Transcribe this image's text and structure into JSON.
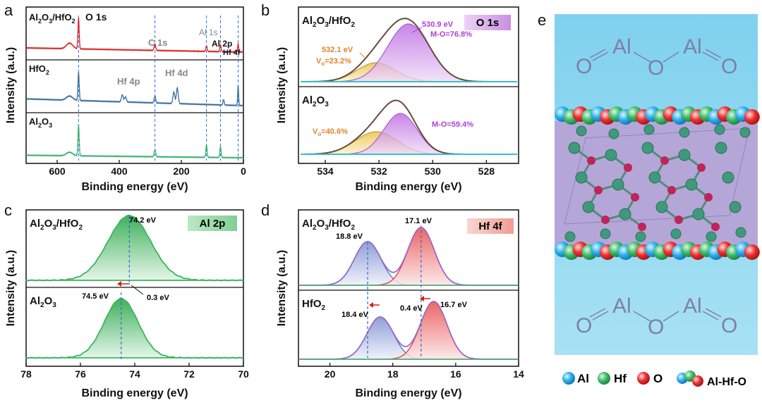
{
  "panel_letters": [
    "a",
    "b",
    "c",
    "d",
    "e"
  ],
  "chart_data": [
    {
      "id": "a",
      "type": "line",
      "xlabel": "Binding energy (eV)",
      "ylabel": "Intensity (a.u.)",
      "xlim": [
        700,
        0
      ],
      "xticks": [
        "600",
        "400",
        "200",
        "0"
      ],
      "xtick_values": [
        600,
        400,
        200,
        0
      ],
      "series": [
        {
          "name": "Al2O3/HfO2",
          "label_main": "Al",
          "color": "#d62728"
        },
        {
          "name": "HfO2",
          "label_main": "HfO",
          "color": "#3c6e9a"
        },
        {
          "name": "Al2O3",
          "label_main": "Al",
          "color": "#3cb371"
        }
      ],
      "peak_labels": [
        {
          "text": "O 1s",
          "x": 531
        },
        {
          "text": "C 1s",
          "x": 285
        },
        {
          "text": "Al 1s",
          "x": 119
        },
        {
          "text": "Al 2p",
          "x": 74
        },
        {
          "text": "Hf 4f",
          "x": 17
        },
        {
          "text": "Hf 4p",
          "x": 390
        },
        {
          "text": "Hf 4d",
          "x": 214
        }
      ],
      "ref_lines": [
        531,
        285,
        119,
        74,
        17
      ]
    },
    {
      "id": "b",
      "type": "line",
      "xlabel": "Binding energy (eV)",
      "ylabel": "Intensity (a.u.)",
      "xlim": [
        535,
        526.8
      ],
      "xticks": [
        "534",
        "532",
        "530",
        "528"
      ],
      "xtick_values": [
        534,
        532,
        530,
        528
      ],
      "badge": "O 1s",
      "top": {
        "name": "Al2O3/HfO2",
        "peaks": [
          {
            "center": 530.9,
            "label": "530.9 eV",
            "label2": "M-O=76.8%"
          },
          {
            "center": 532.1,
            "label": "532.1 eV",
            "label2": "V=23.2%"
          }
        ]
      },
      "bottom": {
        "name": "Al2O3",
        "peaks": [
          {
            "center": 531.2,
            "label": "M-O=59.4%"
          },
          {
            "center": 532.1,
            "label": "V=40.6%"
          }
        ]
      }
    },
    {
      "id": "c",
      "type": "line",
      "xlabel": "Binding energy (eV)",
      "ylabel": "Intensity (a.u.)",
      "xlim": [
        78,
        70
      ],
      "xticks": [
        "78",
        "76",
        "74",
        "72",
        "70"
      ],
      "xtick_values": [
        78,
        76,
        74,
        72,
        70
      ],
      "badge": "Al 2p",
      "top": {
        "name": "Al2O3/HfO2",
        "peak": 74.2,
        "label": "74.2 eV"
      },
      "bottom": {
        "name": "Al2O3",
        "peak": 74.5,
        "label": "74.5 eV"
      },
      "shift": "0.3 eV"
    },
    {
      "id": "d",
      "type": "line",
      "xlabel": "Binding energy (eV)",
      "ylabel": "Intensity (a.u.)",
      "xlim": [
        21,
        14
      ],
      "xticks": [
        "20",
        "18",
        "16",
        "14"
      ],
      "xtick_values": [
        20,
        18,
        16,
        14
      ],
      "badge": "Hf 4f",
      "top": {
        "name": "Al2O3/HfO2",
        "peaks": [
          {
            "center": 18.8,
            "label": "18.8 eV"
          },
          {
            "center": 17.1,
            "label": "17.1 eV"
          }
        ]
      },
      "bottom": {
        "name": "HfO2",
        "peaks": [
          {
            "center": 18.4,
            "label": "18.4 eV"
          },
          {
            "center": 16.7,
            "label": "16.7 eV"
          }
        ]
      },
      "shift": "0.4 eV"
    }
  ],
  "panel_e": {
    "legend": [
      "Al",
      "Hf",
      "O",
      "Al-Hf-O"
    ],
    "mol_atoms": [
      "O",
      "Al",
      "O",
      "Al",
      "O"
    ]
  }
}
